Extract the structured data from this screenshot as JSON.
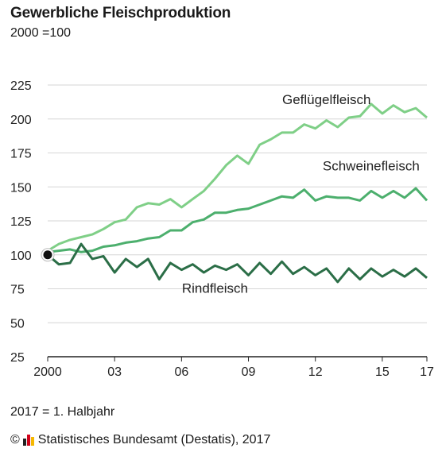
{
  "chart_data": {
    "type": "line",
    "title": "Gewerbliche Fleischproduktion",
    "subtitle": "2000 =100",
    "footnote": "2017 = 1. Halbjahr",
    "source": "© Statistisches Bundesamt (Destatis), 2017",
    "source_prefix": "©",
    "source_text": "Statistisches Bundesamt (Destatis), 2017",
    "ylim": [
      25,
      225
    ],
    "yticks": [
      225,
      200,
      175,
      150,
      125,
      100,
      75,
      50,
      25
    ],
    "xlim": [
      0,
      34
    ],
    "xticks": [
      {
        "x": 0,
        "label": "2000"
      },
      {
        "x": 6,
        "label": "03"
      },
      {
        "x": 12,
        "label": "06"
      },
      {
        "x": 18,
        "label": "09"
      },
      {
        "x": 24,
        "label": "12"
      },
      {
        "x": 30,
        "label": "15"
      },
      {
        "x": 34,
        "label": "17"
      }
    ],
    "grid": true,
    "base_point": {
      "x": 0,
      "y": 100
    },
    "series": [
      {
        "name": "Geflügelfleisch",
        "color": "#7fcf87",
        "label_at": {
          "x": 25,
          "y": 211
        },
        "values": [
          103,
          108,
          111,
          113,
          115,
          119,
          124,
          126,
          135,
          138,
          137,
          141,
          135,
          141,
          147,
          156,
          166,
          173,
          167,
          181,
          185,
          190,
          190,
          196,
          193,
          199,
          194,
          201,
          202,
          211,
          204,
          210,
          205,
          208,
          201
        ]
      },
      {
        "name": "Schweinefleisch",
        "color": "#4caf6d",
        "label_at": {
          "x": 29,
          "y": 162
        },
        "values": [
          102,
          103,
          104,
          102,
          103,
          106,
          107,
          109,
          110,
          112,
          113,
          118,
          118,
          124,
          126,
          131,
          131,
          133,
          134,
          137,
          140,
          143,
          142,
          148,
          140,
          143,
          142,
          142,
          140,
          147,
          142,
          147,
          142,
          149,
          140
        ]
      },
      {
        "name": "Rindfleisch",
        "color": "#2b6e47",
        "label_at": {
          "x": 15,
          "y": 72
        },
        "values": [
          100,
          93,
          94,
          108,
          97,
          99,
          87,
          97,
          91,
          97,
          82,
          94,
          89,
          93,
          87,
          92,
          89,
          93,
          85,
          94,
          86,
          95,
          86,
          91,
          85,
          90,
          80,
          90,
          82,
          90,
          84,
          89,
          84,
          90,
          83
        ]
      }
    ]
  }
}
